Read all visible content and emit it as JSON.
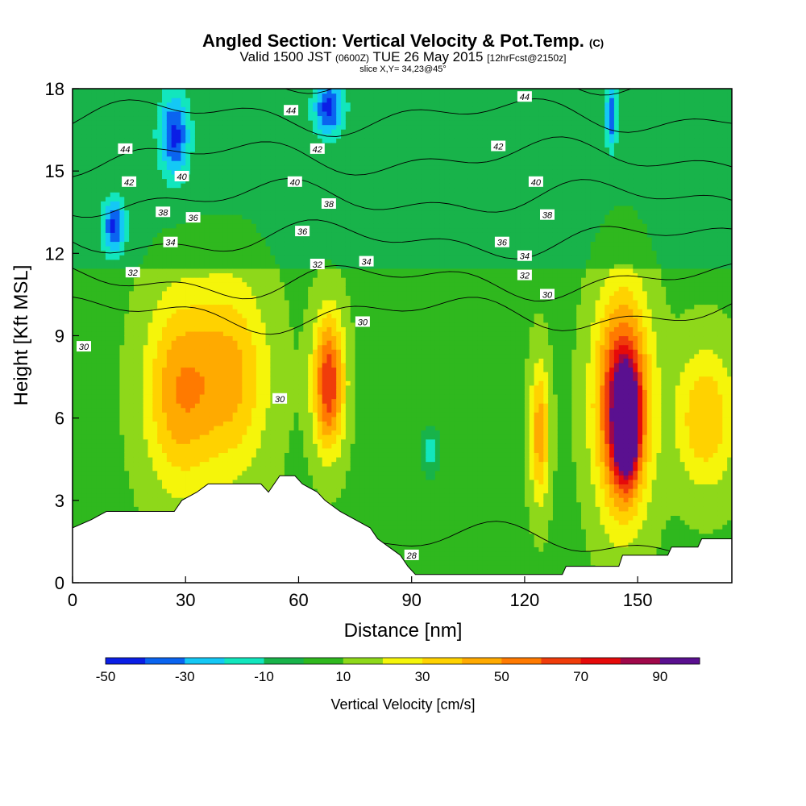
{
  "chart_data": {
    "type": "heatmap",
    "title": "Angled Section: Vertical Velocity & Pot.Temp.",
    "title_mark": "(C)",
    "subtitle_parts": [
      "Valid 1500 JST",
      "(0600Z)",
      "TUE 26 May 2015",
      "[12hrFcst@2150z]"
    ],
    "subtitle2": "slice X,Y= 34,23@45°",
    "xlabel": "Distance [nm]",
    "ylabel": "Height [Kft MSL]",
    "xlim": [
      0,
      175
    ],
    "ylim": [
      0,
      18
    ],
    "x_ticks": [
      0,
      30,
      60,
      90,
      120,
      150
    ],
    "y_ticks": [
      0,
      3,
      6,
      9,
      12,
      15,
      18
    ],
    "colorbar": {
      "label": "Vertical Velocity [cm/s]",
      "range": [
        -50,
        100
      ],
      "step": 10,
      "tick_values": [
        -50,
        -30,
        -10,
        10,
        30,
        50,
        70,
        90
      ],
      "colors": [
        "#0a1ee6",
        "#0a64f0",
        "#14c8f5",
        "#12e6bd",
        "#18b34a",
        "#2fb81e",
        "#8ed81a",
        "#f5f50a",
        "#ffd200",
        "#ffaa00",
        "#ff7a00",
        "#f03c0a",
        "#e60a0a",
        "#a0084a",
        "#5a1090"
      ]
    },
    "terrain_kft": [
      [
        0,
        2.0
      ],
      [
        5,
        2.3
      ],
      [
        9,
        2.6
      ],
      [
        16,
        2.6
      ],
      [
        27,
        2.6
      ],
      [
        29,
        3.0
      ],
      [
        33,
        3.3
      ],
      [
        36,
        3.6
      ],
      [
        50,
        3.6
      ],
      [
        52,
        3.3
      ],
      [
        55,
        3.9
      ],
      [
        59,
        3.9
      ],
      [
        61,
        3.6
      ],
      [
        65,
        3.3
      ],
      [
        67,
        3.0
      ],
      [
        71,
        2.6
      ],
      [
        75,
        2.3
      ],
      [
        79,
        2.0
      ],
      [
        81,
        1.6
      ],
      [
        84,
        1.3
      ],
      [
        87,
        1.0
      ],
      [
        89,
        0.6
      ],
      [
        91,
        0.3
      ],
      [
        130,
        0.3
      ],
      [
        131,
        0.6
      ],
      [
        145,
        0.6
      ],
      [
        146,
        1.0
      ],
      [
        158,
        1.0
      ],
      [
        159,
        1.3
      ],
      [
        166,
        1.3
      ],
      [
        167,
        1.6
      ],
      [
        175,
        1.6
      ]
    ],
    "velocity_cells": [
      {
        "x": 28,
        "z": 7.0,
        "rx": 9,
        "rz": 3.5,
        "v": 38
      },
      {
        "x": 42,
        "z": 7.5,
        "rx": 10,
        "rz": 3.5,
        "v": 35
      },
      {
        "x": 68,
        "z": 7.3,
        "rx": 4,
        "rz": 2.4,
        "v": 62
      },
      {
        "x": 124,
        "z": 5.5,
        "rx": 2.5,
        "rz": 2.5,
        "v": 40
      },
      {
        "x": 146,
        "z": 6.5,
        "rx": 7,
        "rz": 3.8,
        "v": 78
      },
      {
        "x": 147,
        "z": 5.8,
        "rx": 3,
        "rz": 1.8,
        "v": 95
      },
      {
        "x": 168,
        "z": 6.0,
        "rx": 8,
        "rz": 2.5,
        "v": 32
      },
      {
        "x": 27,
        "z": 16.3,
        "rx": 4,
        "rz": 1.5,
        "v": -42
      },
      {
        "x": 68,
        "z": 17.3,
        "rx": 4,
        "rz": 1.0,
        "v": -42
      },
      {
        "x": 11,
        "z": 13.0,
        "rx": 3,
        "rz": 1.0,
        "v": -40
      },
      {
        "x": 95,
        "z": 4.8,
        "rx": 3,
        "rz": 1.0,
        "v": -22
      },
      {
        "x": 143,
        "z": 17.0,
        "rx": 1.5,
        "rz": 1.2,
        "v": -38
      }
    ],
    "isentropes": [
      28,
      30,
      32,
      34,
      36,
      38,
      40,
      42,
      44
    ],
    "contour_labels": [
      {
        "x": 3,
        "z": 8.6,
        "text": "30"
      },
      {
        "x": 55,
        "z": 6.7,
        "text": "30"
      },
      {
        "x": 77,
        "z": 9.5,
        "text": "30"
      },
      {
        "x": 126,
        "z": 10.5,
        "text": "30"
      },
      {
        "x": 90,
        "z": 1.0,
        "text": "28"
      },
      {
        "x": 16,
        "z": 11.3,
        "text": "32"
      },
      {
        "x": 65,
        "z": 11.6,
        "text": "32"
      },
      {
        "x": 120,
        "z": 11.2,
        "text": "32"
      },
      {
        "x": 26,
        "z": 12.4,
        "text": "34"
      },
      {
        "x": 78,
        "z": 11.7,
        "text": "34"
      },
      {
        "x": 120,
        "z": 11.9,
        "text": "34"
      },
      {
        "x": 32,
        "z": 13.3,
        "text": "36"
      },
      {
        "x": 61,
        "z": 12.8,
        "text": "36"
      },
      {
        "x": 114,
        "z": 12.4,
        "text": "36"
      },
      {
        "x": 24,
        "z": 13.5,
        "text": "38"
      },
      {
        "x": 68,
        "z": 13.8,
        "text": "38"
      },
      {
        "x": 126,
        "z": 13.4,
        "text": "38"
      },
      {
        "x": 29,
        "z": 14.8,
        "text": "40"
      },
      {
        "x": 59,
        "z": 14.6,
        "text": "40"
      },
      {
        "x": 123,
        "z": 14.6,
        "text": "40"
      },
      {
        "x": 15,
        "z": 14.6,
        "text": "42"
      },
      {
        "x": 65,
        "z": 15.8,
        "text": "42"
      },
      {
        "x": 113,
        "z": 15.9,
        "text": "42"
      },
      {
        "x": 14,
        "z": 15.8,
        "text": "44"
      },
      {
        "x": 58,
        "z": 17.2,
        "text": "44"
      },
      {
        "x": 120,
        "z": 17.7,
        "text": "44"
      }
    ]
  }
}
